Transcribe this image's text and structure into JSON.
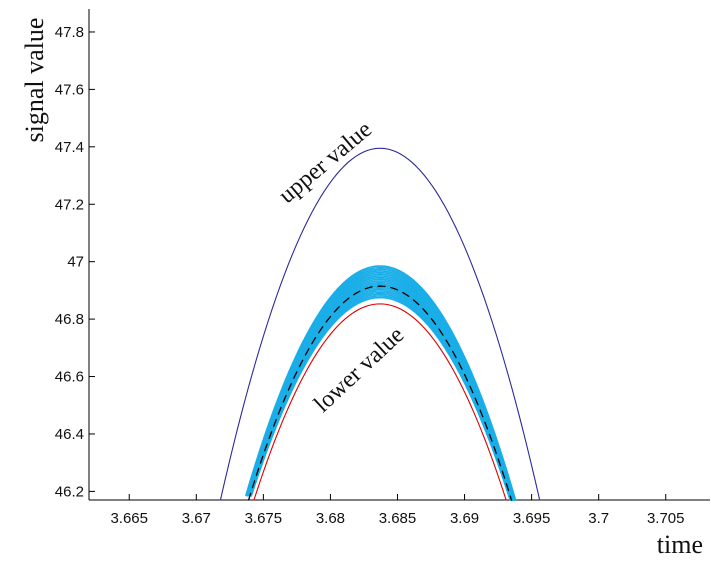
{
  "chart_data": {
    "type": "line",
    "title": "",
    "xlabel": "time",
    "ylabel": "signal value",
    "xlim": [
      3.662,
      3.7083
    ],
    "ylim": [
      46.17,
      47.88
    ],
    "grid": false,
    "legend": "none",
    "x_ticks": [
      "3.665",
      "3.67",
      "3.675",
      "3.68",
      "3.685",
      "3.69",
      "3.695",
      "3.7",
      "3.705"
    ],
    "y_ticks": [
      "46.2",
      "46.4",
      "46.6",
      "46.8",
      "47",
      "47.2",
      "47.4",
      "47.6",
      "47.8"
    ],
    "annotations": [
      {
        "text": "upper value"
      },
      {
        "text": "lower value"
      }
    ],
    "series": [
      {
        "color": "#2a2a9a",
        "style": "solid",
        "peak_x": 3.6837,
        "peak_y": 47.395,
        "x": [
          3.6718,
          3.6742,
          3.6767,
          3.6792,
          3.6817,
          3.6837,
          3.6857,
          3.6882,
          3.6907,
          3.6932,
          3.6956
        ],
        "y": [
          46.17,
          46.57,
          46.91,
          47.17,
          47.34,
          47.395,
          47.34,
          47.17,
          46.91,
          46.57,
          46.17
        ]
      },
      {
        "color": "#dd0000",
        "style": "solid",
        "peak_x": 3.6837,
        "peak_y": 46.853,
        "x": [
          3.6743,
          3.6762,
          3.6781,
          3.68,
          3.6819,
          3.6837,
          3.6855,
          3.6874,
          3.6893,
          3.6912,
          3.6931
        ],
        "y": [
          46.17,
          46.42,
          46.62,
          46.77,
          46.83,
          46.853,
          46.83,
          46.77,
          46.62,
          46.42,
          46.17
        ]
      },
      {
        "color": "#000000",
        "style": "dashed",
        "peak_x": 3.6837,
        "peak_y": 46.915,
        "x": [
          3.6739,
          3.6758,
          3.6778,
          3.6797,
          3.6817,
          3.6837,
          3.6857,
          3.6877,
          3.6896,
          3.6916,
          3.6935
        ],
        "y": [
          46.17,
          46.44,
          46.66,
          46.82,
          46.89,
          46.915,
          46.89,
          46.82,
          46.66,
          46.44,
          46.17
        ]
      }
    ],
    "bundle": {
      "color": "#1aaee8",
      "count": 20,
      "peak_x": 3.6837,
      "peak_y_min": 46.875,
      "peak_y_max": 46.985
    }
  }
}
